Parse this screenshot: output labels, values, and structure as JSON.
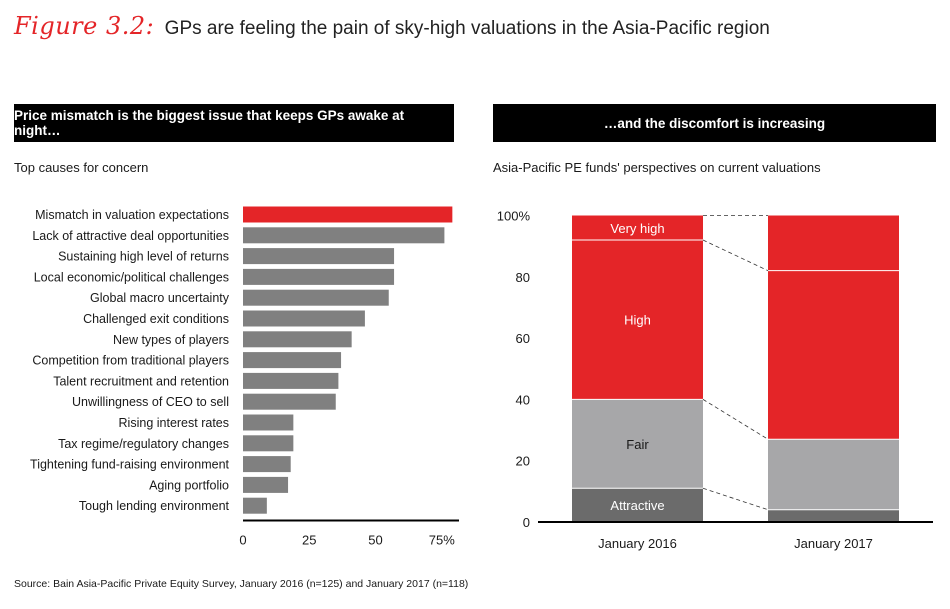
{
  "figure": {
    "label": "Figure 3.2:",
    "title": "GPs are feeling the pain of sky-high valuations in the Asia-Pacific region"
  },
  "left_panel": {
    "banner": "Price mismatch is the biggest issue that keeps GPs awake at night…",
    "subtitle": "Top causes for concern"
  },
  "right_panel": {
    "banner": "…and the discomfort is increasing",
    "subtitle": "Asia-Pacific PE funds' perspectives on current valuations"
  },
  "source": "Source: Bain Asia-Pacific Private Equity Survey, January 2016 (n=125) and January 2017 (n=118)",
  "colors": {
    "red": "#e42528",
    "gray": "#808080",
    "light_gray": "#a7a7a9",
    "dark_gray": "#6b6b6b",
    "black": "#000000"
  },
  "chart_data": [
    {
      "type": "bar",
      "orientation": "horizontal",
      "categories": [
        "Mismatch in valuation expectations",
        "Lack of attractive deal opportunities",
        "Sustaining high level of returns",
        "Local economic/political challenges",
        "Global macro uncertainty",
        "Challenged exit conditions",
        "New types of players",
        "Competition from traditional players",
        "Talent recruitment and retention",
        "Unwillingness of CEO to sell",
        "Rising interest rates",
        "Tax regime/regulatory changes",
        "Tightening fund-raising environment",
        "Aging portfolio",
        "Tough lending environment"
      ],
      "values": [
        79,
        76,
        57,
        57,
        55,
        46,
        41,
        37,
        36,
        35,
        19,
        19,
        18,
        17,
        9
      ],
      "highlight_index": 0,
      "xlim": [
        0,
        80
      ],
      "xticks": [
        "0",
        "25",
        "50",
        "75%"
      ],
      "xtick_values": [
        0,
        25,
        50,
        75
      ]
    },
    {
      "type": "bar",
      "stacked": true,
      "categories": [
        "January 2016",
        "January 2017"
      ],
      "series": [
        {
          "name": "Attractive",
          "values": [
            11,
            4
          ]
        },
        {
          "name": "Fair",
          "values": [
            29,
            23
          ]
        },
        {
          "name": "High",
          "values": [
            52,
            55
          ]
        },
        {
          "name": "Very high",
          "values": [
            8,
            18
          ]
        }
      ],
      "ylim": [
        0,
        100
      ],
      "yticks": [
        "0",
        "20",
        "40",
        "60",
        "80",
        "100%"
      ],
      "ytick_values": [
        0,
        20,
        40,
        60,
        80,
        100
      ]
    }
  ]
}
